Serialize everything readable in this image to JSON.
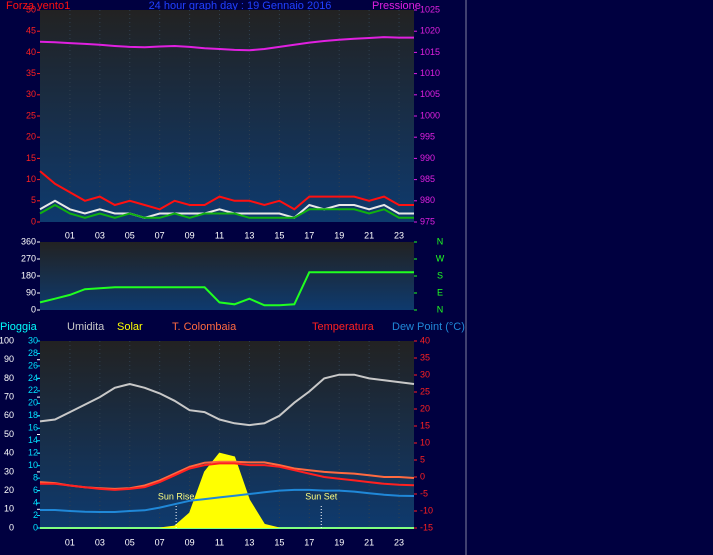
{
  "chart_data": [
    {
      "type": "line",
      "title": "24 hour graph day : 19 Gennaio 2016",
      "x": [
        -1,
        0,
        1,
        2,
        3,
        4,
        5,
        6,
        7,
        8,
        9,
        10,
        11,
        12,
        13,
        14,
        15,
        16,
        17,
        18,
        19,
        20,
        21,
        22,
        23,
        24
      ],
      "xlim": [
        -1,
        24
      ],
      "xticks": [
        {
          "value": 1,
          "label": "01"
        },
        {
          "value": 3,
          "label": "03"
        },
        {
          "value": 5,
          "label": "05"
        },
        {
          "value": 7,
          "label": "07"
        },
        {
          "value": 9,
          "label": "09"
        },
        {
          "value": 11,
          "label": "11"
        },
        {
          "value": 13,
          "label": "13"
        },
        {
          "value": 15,
          "label": "15"
        },
        {
          "value": 17,
          "label": "17"
        },
        {
          "value": 19,
          "label": "19"
        },
        {
          "value": 21,
          "label": "21"
        },
        {
          "value": 23,
          "label": "23"
        }
      ],
      "ylim": [
        0,
        50
      ],
      "yticks": [
        0,
        5,
        10,
        15,
        20,
        25,
        30,
        35,
        40,
        45,
        50
      ],
      "y2lim": [
        975,
        1025
      ],
      "y2ticks": [
        975,
        980,
        985,
        990,
        995,
        1000,
        1005,
        1010,
        1015,
        1020,
        1025
      ],
      "grid": true,
      "series": [
        {
          "name": "Forza vento1",
          "color": "#ff1010",
          "values": [
            12,
            9,
            7,
            5,
            6,
            4,
            5,
            4,
            3,
            5,
            4,
            4,
            6,
            5,
            5,
            4,
            5,
            3,
            6,
            6,
            6,
            6,
            5,
            6,
            4,
            4
          ]
        },
        {
          "color": "#e8e8e8",
          "values": [
            3,
            5,
            3,
            2,
            3,
            2,
            2,
            1,
            2,
            2,
            2,
            2,
            3,
            2,
            2,
            2,
            2,
            1,
            4,
            3,
            4,
            4,
            3,
            4,
            2,
            2
          ]
        },
        {
          "color": "#10b010",
          "values": [
            2,
            4,
            2,
            1,
            2,
            1,
            2,
            1,
            1,
            2,
            1,
            2,
            2,
            2,
            1,
            1,
            1,
            1,
            3,
            3,
            3,
            3,
            2,
            3,
            1,
            1
          ]
        },
        {
          "name": "Pressione",
          "color": "#e020e0",
          "axis": "y2",
          "values": [
            1017.5,
            1017.4,
            1017.2,
            1017,
            1016.8,
            1016.5,
            1016.3,
            1016.2,
            1016.4,
            1016.5,
            1016.3,
            1016,
            1015.8,
            1015.6,
            1015.5,
            1015.8,
            1016.3,
            1016.8,
            1017.3,
            1017.7,
            1018,
            1018.2,
            1018.4,
            1018.6,
            1018.5,
            1018.5
          ]
        }
      ]
    },
    {
      "type": "line",
      "x": [
        -1,
        0,
        1,
        2,
        3,
        4,
        5,
        6,
        7,
        8,
        9,
        10,
        11,
        12,
        13,
        14,
        15,
        16,
        17,
        18,
        19,
        20,
        21,
        22,
        23,
        24
      ],
      "xlim": [
        -1,
        24
      ],
      "ylim": [
        0,
        360
      ],
      "yticks": [
        0,
        90,
        180,
        270,
        360
      ],
      "y2lim": [
        0,
        360
      ],
      "y2ticks": [
        {
          "value": 360,
          "label": "N"
        },
        {
          "value": 270,
          "label": "W"
        },
        {
          "value": 180,
          "label": "S"
        },
        {
          "value": 90,
          "label": "E"
        },
        {
          "value": 0,
          "label": "N"
        }
      ],
      "grid": true,
      "series": [
        {
          "color": "#20ff20",
          "values": [
            40,
            60,
            80,
            110,
            115,
            120,
            120,
            120,
            120,
            120,
            120,
            120,
            40,
            30,
            60,
            25,
            25,
            30,
            200,
            200,
            200,
            200,
            200,
            200,
            200,
            200
          ]
        }
      ]
    },
    {
      "type": "line",
      "x": [
        -1,
        0,
        1,
        2,
        3,
        4,
        5,
        6,
        7,
        8,
        9,
        10,
        11,
        12,
        13,
        14,
        15,
        16,
        17,
        18,
        19,
        20,
        21,
        22,
        23,
        24
      ],
      "xlim": [
        -1,
        24
      ],
      "xticks": [
        {
          "value": 1,
          "label": "01"
        },
        {
          "value": 3,
          "label": "03"
        },
        {
          "value": 5,
          "label": "05"
        },
        {
          "value": 7,
          "label": "07"
        },
        {
          "value": 9,
          "label": "09"
        },
        {
          "value": 11,
          "label": "11"
        },
        {
          "value": 13,
          "label": "13"
        },
        {
          "value": 15,
          "label": "15"
        },
        {
          "value": 17,
          "label": "17"
        },
        {
          "value": 19,
          "label": "19"
        },
        {
          "value": 21,
          "label": "21"
        },
        {
          "value": 23,
          "label": "23"
        }
      ],
      "ylim": [
        0,
        100
      ],
      "yticks": [
        0,
        10,
        20,
        30,
        40,
        50,
        60,
        70,
        80,
        90,
        100
      ],
      "y3lim": [
        0,
        30
      ],
      "y3ticks": [
        0,
        2,
        4,
        6,
        8,
        10,
        12,
        14,
        16,
        18,
        20,
        22,
        24,
        26,
        28,
        30
      ],
      "y2lim": [
        -15,
        40
      ],
      "y2ticks": [
        -15,
        -10,
        -5,
        0,
        5,
        10,
        15,
        20,
        25,
        30,
        35,
        40
      ],
      "grid": true,
      "series": [
        {
          "name": "Pioggia",
          "color": "#00ffff",
          "axis": "y3",
          "values": [
            0,
            0,
            0,
            0,
            0,
            0,
            0,
            0,
            0,
            0,
            0,
            0,
            0,
            0,
            0,
            0,
            0,
            0,
            0,
            0,
            0,
            0,
            0,
            0,
            0,
            0
          ]
        },
        {
          "name": "Umidita",
          "color": "#c8c8c8",
          "values": [
            57,
            58,
            62,
            66,
            70,
            75,
            77,
            75,
            72,
            68,
            63,
            62,
            58,
            56,
            55,
            56,
            60,
            67,
            73,
            80,
            82,
            82,
            80,
            79,
            78,
            77
          ]
        },
        {
          "name": "Solar",
          "color": "#ffff00",
          "style": "area",
          "values": [
            0,
            0,
            0,
            0,
            0,
            0,
            0,
            0,
            0,
            1,
            8,
            30,
            40,
            38,
            15,
            2,
            0,
            0,
            0,
            0,
            0,
            0,
            0,
            0,
            0,
            0
          ]
        },
        {
          "name": "T. Colombaia",
          "color": "#ff6a40",
          "axis": "y2",
          "values": [
            -1.5,
            -1.8,
            -2.5,
            -3,
            -3.3,
            -3.5,
            -3.3,
            -2.5,
            -1,
            1,
            3,
            4.2,
            4.5,
            4.5,
            4.3,
            4.3,
            3.5,
            2.5,
            2,
            1.5,
            1.2,
            1,
            0.5,
            0,
            0,
            -0.3
          ]
        },
        {
          "name": "Temperatura",
          "color": "#ff2020",
          "axis": "y2",
          "values": [
            -2,
            -2,
            -2.5,
            -3,
            -3.5,
            -3.8,
            -3.5,
            -3,
            -1.5,
            0.5,
            2.5,
            3.5,
            4,
            4,
            3.5,
            3.5,
            3,
            2,
            1,
            0,
            -0.5,
            -1,
            -1.5,
            -2,
            -2.3,
            -2.4
          ]
        },
        {
          "name": "Dew Point (°C)",
          "color": "#2088d8",
          "axis": "y2",
          "values": [
            -9.7,
            -9.7,
            -10,
            -10.2,
            -10.3,
            -10.3,
            -10,
            -9.8,
            -9,
            -8,
            -7,
            -6.5,
            -6,
            -5.5,
            -5,
            -4.5,
            -4,
            -3.8,
            -3.8,
            -4,
            -4,
            -4.3,
            -4.8,
            -5.2,
            -5.5,
            -5.6
          ]
        }
      ],
      "annotations": [
        {
          "text": "Sun Rise",
          "x": 8.1
        },
        {
          "text": "Sun Set",
          "x": 17.8
        }
      ]
    }
  ]
}
